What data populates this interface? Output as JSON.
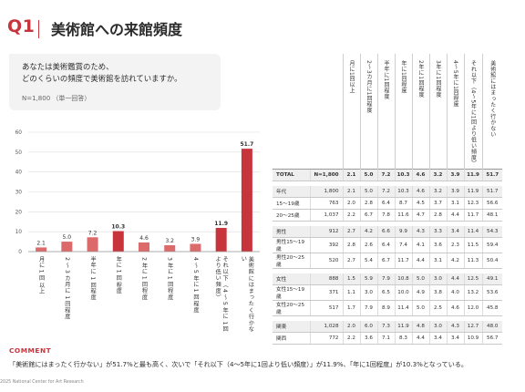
{
  "header": {
    "q": "Q1",
    "title": "美術館への来館頻度"
  },
  "question": {
    "line1": "あなたは美術鑑賞のため、",
    "line2": "どのくらいの頻度で美術館を訪れていますか。",
    "note": "N=1,800 （単一回答）"
  },
  "colors": {
    "accent": "#c8343b",
    "bar": "#c8343b",
    "bar_light": "#dc6a6a"
  },
  "chart_data": {
    "type": "bar",
    "title": "",
    "xlabel": "",
    "ylabel": "",
    "ylim": [
      0,
      60
    ],
    "yticks": [
      0,
      10,
      20,
      30,
      40,
      50,
      60
    ],
    "grid": true,
    "categories": [
      "月に1回以上",
      "2〜3カ月に1回程度",
      "半年に1回程度",
      "年に1回程度",
      "2年に1回程度",
      "3年に1回程度",
      "4〜5年に1回程度",
      "それ以下（4〜5年に1回より低い頻度）",
      "美術館にはまったく行かない"
    ],
    "values": [
      2.1,
      5.0,
      7.2,
      10.3,
      4.6,
      3.2,
      3.9,
      11.9,
      51.7
    ],
    "highlight": [
      3,
      7,
      8
    ]
  },
  "table": {
    "columns": [
      "",
      "",
      "月に1回以上",
      "2〜3カ月に1回程度",
      "半年に1回程度",
      "年に1回程度",
      "2年に1回程度",
      "3年に1回程度",
      "4〜5年に1回程度",
      "それ以下（4〜5年に1回より低い頻度）",
      "美術館にはまったく行かない"
    ],
    "rows": [
      {
        "label": "TOTAL",
        "n": "N=1,800",
        "values": [
          "2.1",
          "5.0",
          "7.2",
          "10.3",
          "4.6",
          "3.2",
          "3.9",
          "11.9",
          "51.7"
        ],
        "shade": true,
        "bold": true
      },
      {
        "gap": true
      },
      {
        "label": "年代",
        "n": "1,800",
        "values": [
          "2.1",
          "5.0",
          "7.2",
          "10.3",
          "4.6",
          "3.2",
          "3.9",
          "11.9",
          "51.7"
        ],
        "shade": true
      },
      {
        "label": "15〜19歳",
        "n": "763",
        "values": [
          "2.0",
          "2.8",
          "6.4",
          "8.7",
          "4.5",
          "3.7",
          "3.1",
          "12.3",
          "56.6"
        ]
      },
      {
        "label": "20〜25歳",
        "n": "1,037",
        "values": [
          "2.2",
          "6.7",
          "7.8",
          "11.6",
          "4.7",
          "2.8",
          "4.4",
          "11.7",
          "48.1"
        ]
      },
      {
        "gap": true
      },
      {
        "label": "男性",
        "n": "912",
        "values": [
          "2.7",
          "4.2",
          "6.6",
          "9.9",
          "4.3",
          "3.3",
          "3.4",
          "11.4",
          "54.3"
        ],
        "shade": true
      },
      {
        "label": "男性15〜19歳",
        "n": "392",
        "values": [
          "2.8",
          "2.6",
          "6.4",
          "7.4",
          "4.1",
          "3.6",
          "2.3",
          "11.5",
          "59.4"
        ]
      },
      {
        "label": "男性20〜25歳",
        "n": "520",
        "values": [
          "2.7",
          "5.4",
          "6.7",
          "11.7",
          "4.4",
          "3.1",
          "4.2",
          "11.3",
          "50.4"
        ]
      },
      {
        "gap": true
      },
      {
        "label": "女性",
        "n": "888",
        "values": [
          "1.5",
          "5.9",
          "7.9",
          "10.8",
          "5.0",
          "3.0",
          "4.4",
          "12.5",
          "49.1"
        ],
        "shade": true
      },
      {
        "label": "女性15〜19歳",
        "n": "371",
        "values": [
          "1.1",
          "3.0",
          "6.5",
          "10.0",
          "4.9",
          "3.8",
          "4.0",
          "13.2",
          "53.6"
        ]
      },
      {
        "label": "女性20〜25歳",
        "n": "517",
        "values": [
          "1.7",
          "7.9",
          "8.9",
          "11.4",
          "5.0",
          "2.5",
          "4.6",
          "12.0",
          "45.8"
        ]
      },
      {
        "gap": true
      },
      {
        "label": "関東",
        "n": "1,028",
        "values": [
          "2.0",
          "6.0",
          "7.3",
          "11.9",
          "4.8",
          "3.0",
          "4.3",
          "12.7",
          "48.0"
        ],
        "shade": true
      },
      {
        "label": "関西",
        "n": "772",
        "values": [
          "2.2",
          "3.6",
          "7.1",
          "8.3",
          "4.4",
          "3.4",
          "3.4",
          "10.9",
          "56.7"
        ]
      }
    ]
  },
  "comment": {
    "heading": "COMMENT",
    "text": "「美術館にはまったく行かない」が51.7%と最も高く、次いで「それ以下（4〜5年に1回より低い頻度）」が11.9%、「年に1回程度」が10.3%となっている。"
  },
  "footer": "2025 National Center for Art Research"
}
